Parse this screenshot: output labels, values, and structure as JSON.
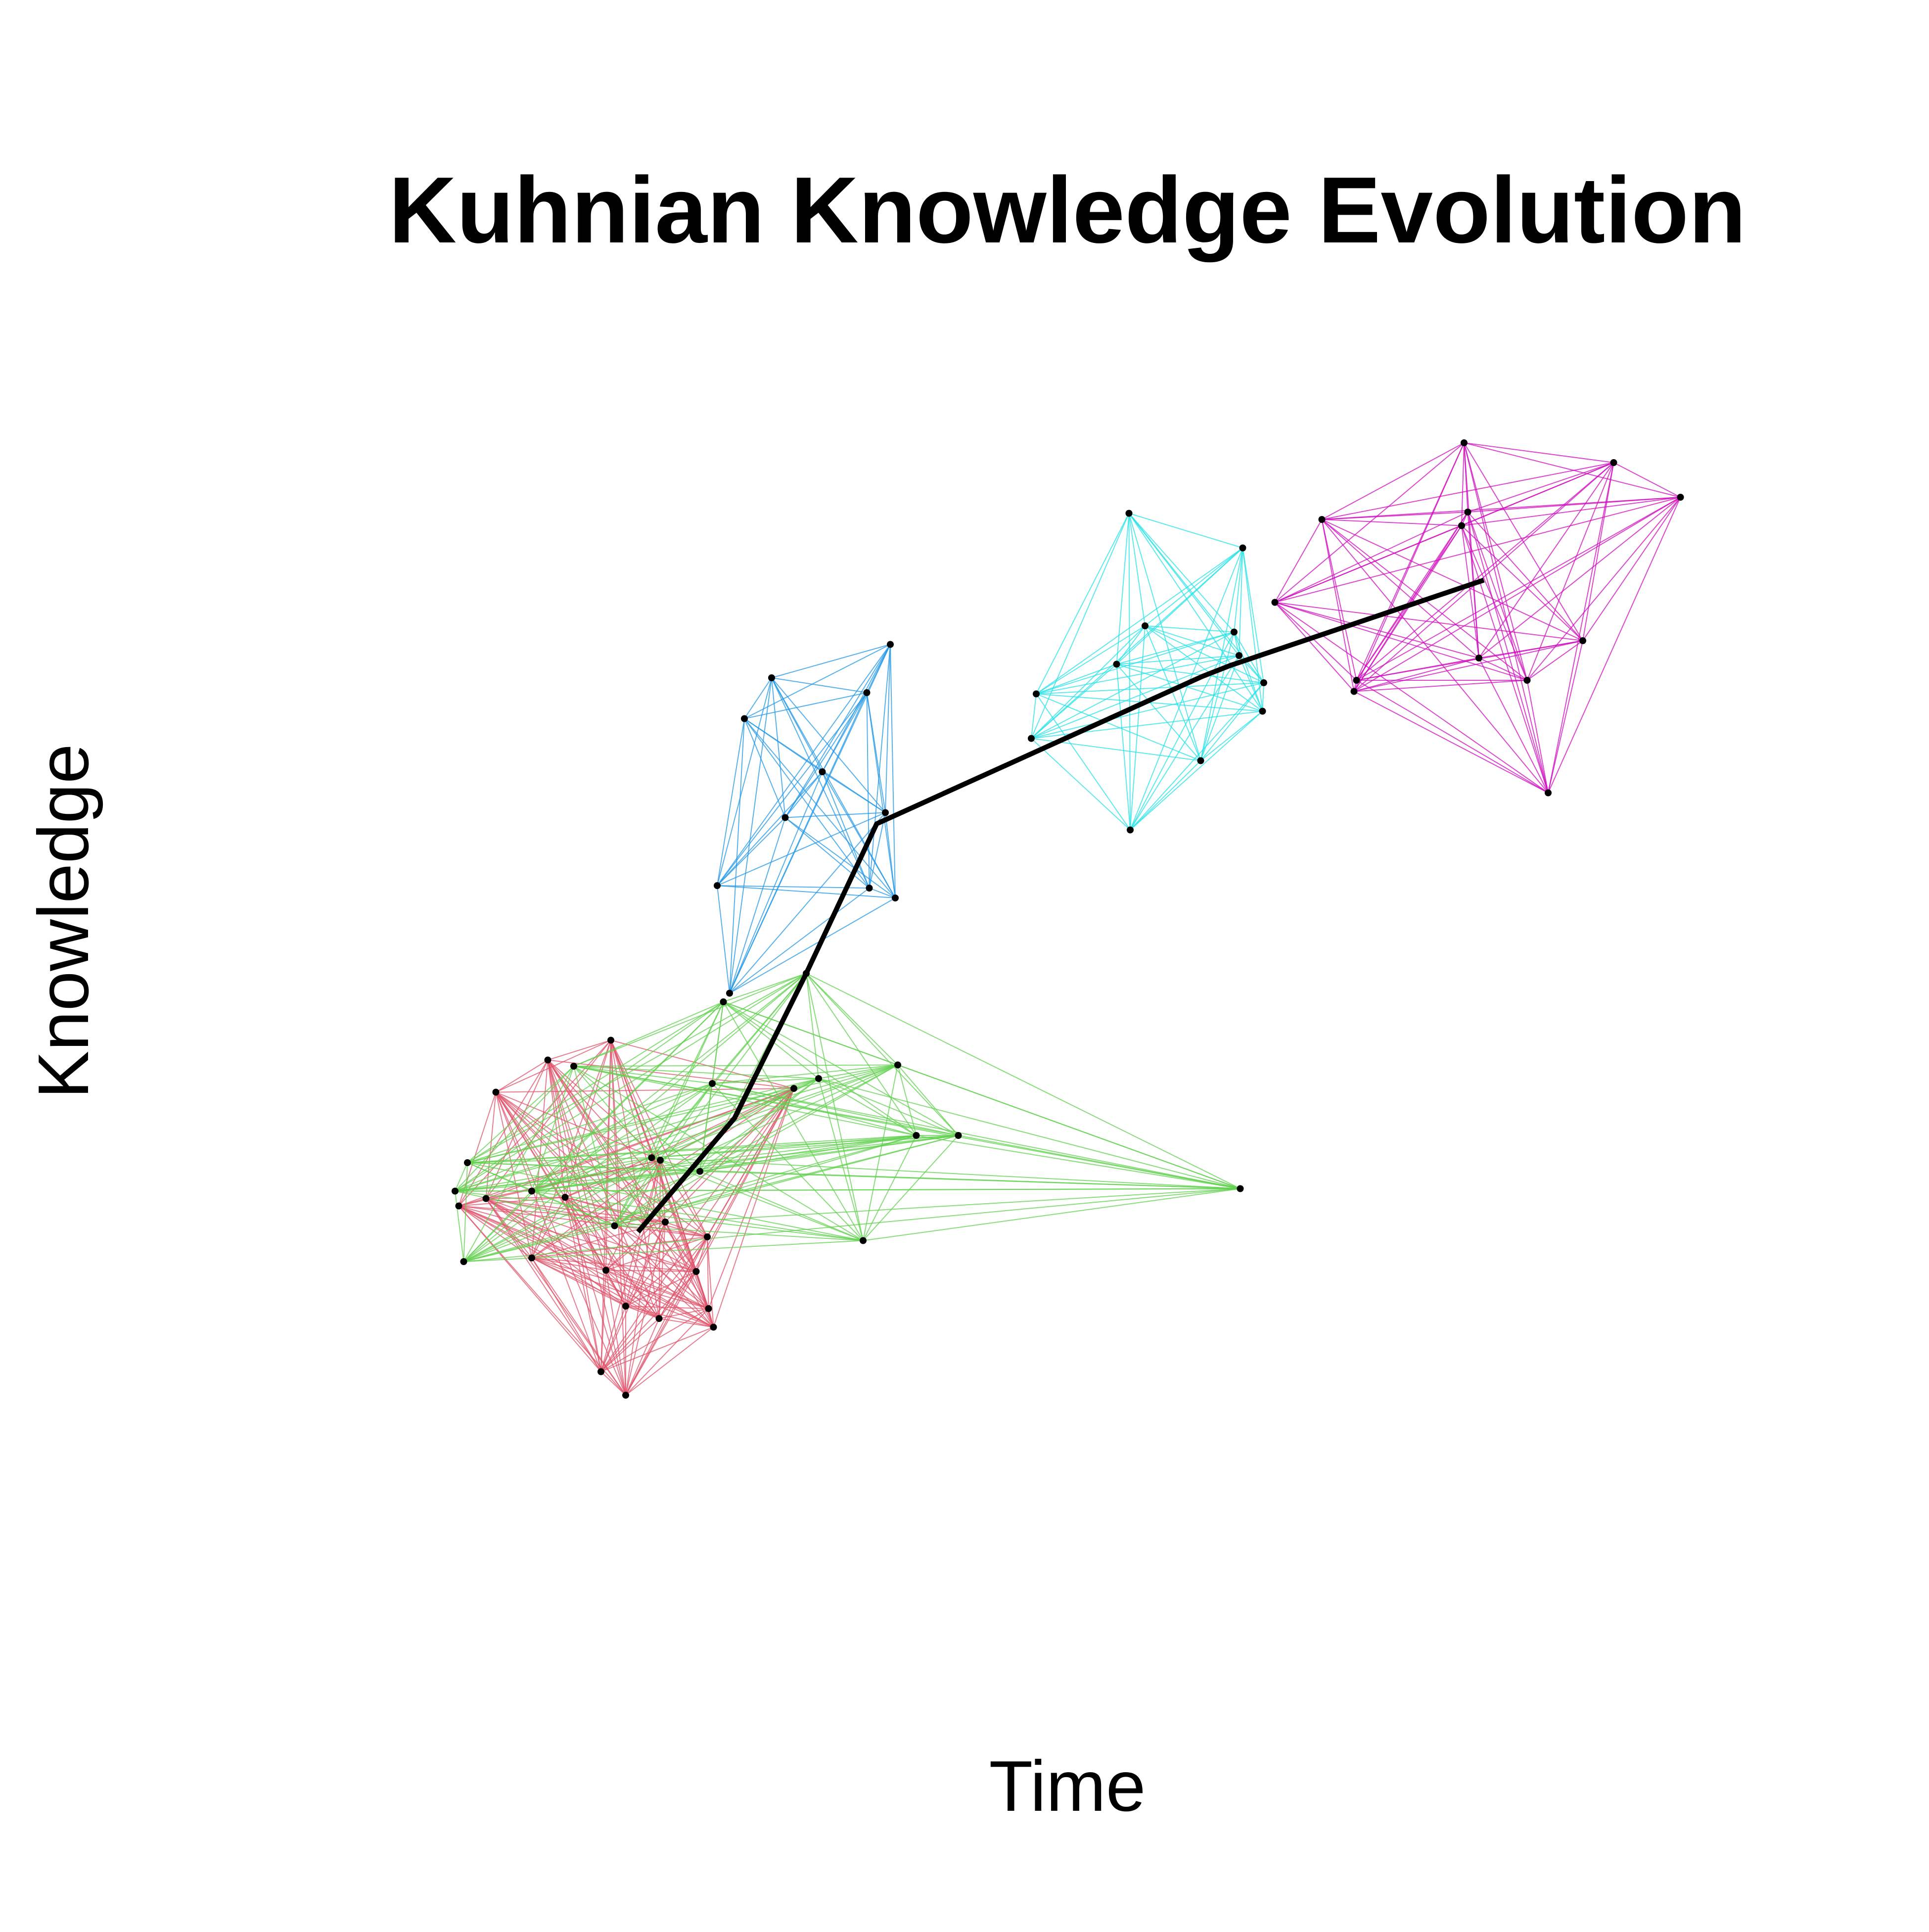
{
  "chart_data": {
    "type": "network",
    "title": "Kuhnian Knowledge Evolution",
    "x_label": "Time",
    "y_label": "Knowledge",
    "xlim": [
      0,
      1560
    ],
    "ylim": [
      0,
      1560
    ],
    "series": [
      {
        "color": "#DF536B",
        "x": [
          401,
          494,
          443,
          371,
          393,
          457,
          430,
          490,
          506,
          533,
          573,
          577,
          486,
          506,
          563,
          572,
          538,
          642,
          534
        ],
        "y": [
          677,
          719,
          703,
          585,
          591,
          592,
          543,
          533,
          504,
          494,
          502,
          487,
          451,
          432,
          532,
          560,
          572,
          680,
          622
        ]
      },
      {
        "color": "#61D04F",
        "x": [
          375,
          464,
          576,
          585,
          652,
          662,
          726,
          741,
          775,
          698,
          1003,
          497,
          378,
          430,
          368,
          527,
          566
        ],
        "y": [
          540,
          698,
          684,
          750,
          773,
          688,
          699,
          642,
          642,
          557,
          599,
          569,
          620,
          597,
          597,
          624,
          613
        ]
      },
      {
        "color": "#2297E6",
        "x": [
          720,
          624,
          701,
          602,
          665,
          716,
          635,
          580,
          703,
          724,
          590
        ],
        "y": [
          1039,
          1012,
          1000,
          979,
          936,
          903,
          899,
          844,
          842,
          834,
          757
        ]
      },
      {
        "color": "#28E2E5",
        "x": [
          913,
          1005,
          926,
          998,
          903,
          1002,
          838,
          1022,
          1021,
          834,
          971,
          914
        ],
        "y": [
          1145,
          1117,
          1054,
          1049,
          1023,
          1030,
          999,
          1008,
          985,
          963,
          945,
          889
        ]
      },
      {
        "color": "#CD0BBC",
        "x": [
          1184,
          1305,
          1359,
          1187,
          1069,
          1182,
          1031,
          1280,
          1196,
          1235,
          1097,
          1095,
          1252
        ],
        "y": [
          1202,
          1186,
          1158,
          1146,
          1140,
          1135,
          1073,
          1042,
          1028,
          1010,
          1010,
          1001,
          919
        ]
      }
    ],
    "trajectory": {
      "color": "#000000",
      "x": [
        516,
        594,
        652,
        709,
        972,
        995,
        1200
      ],
      "y": [
        564,
        656,
        773,
        894,
        1013,
        1022,
        1091
      ]
    }
  }
}
